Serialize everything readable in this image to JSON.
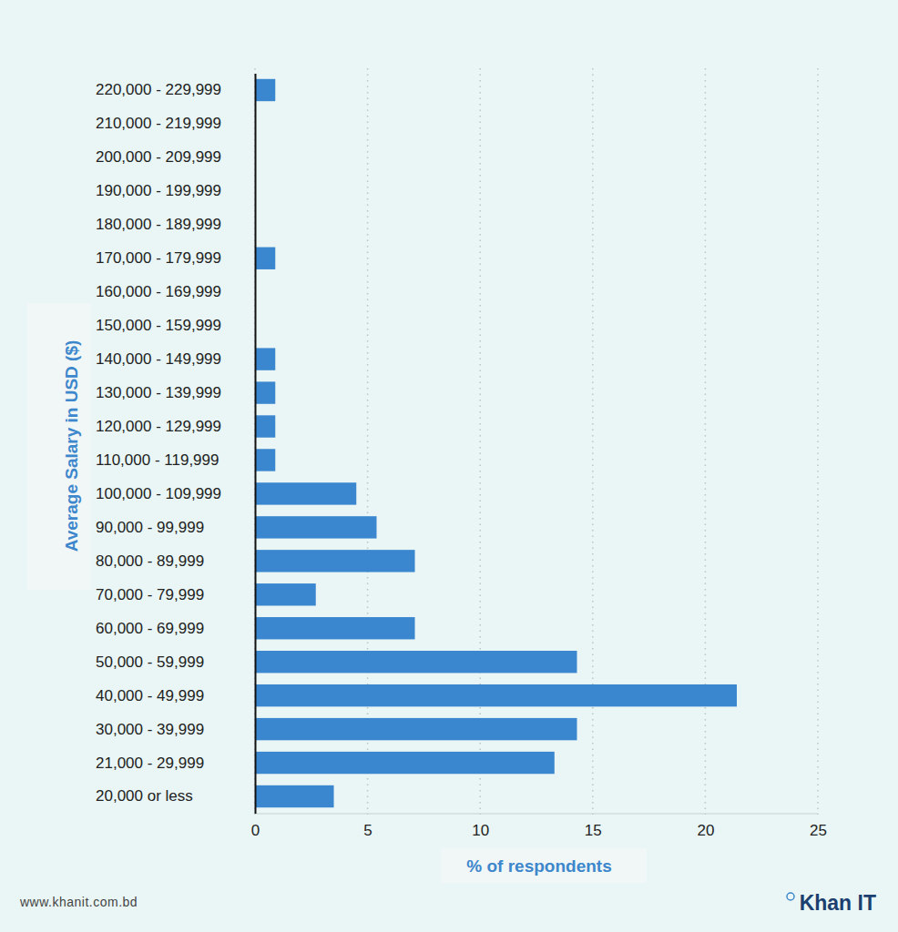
{
  "chart_data": {
    "type": "bar",
    "orientation": "horizontal",
    "x_label": "% of respondents",
    "y_label": "Average Salary in USD ($)",
    "categories": [
      "20,000 or less",
      "21,000 - 29,999",
      "30,000 - 39,999",
      "40,000 - 49,999",
      "50,000 - 59,999",
      "60,000 - 69,999",
      "70,000 - 79,999",
      "80,000 - 89,999",
      "90,000 - 99,999",
      "100,000 - 109,999",
      "110,000 - 119,999",
      "120,000 - 129,999",
      "130,000 - 139,999",
      "140,000 - 149,999",
      "150,000 - 159,999",
      "160,000 - 169,999",
      "170,000 - 179,999",
      "180,000 - 189,999",
      "190,000 - 199,999",
      "200,000 - 209,999",
      "210,000 - 219,999",
      "220,000 - 229,999"
    ],
    "values": [
      3.5,
      13.3,
      14.3,
      21.4,
      14.3,
      7.1,
      2.7,
      7.1,
      5.4,
      4.5,
      0.9,
      0.9,
      0.9,
      0.9,
      0,
      0,
      0.9,
      0,
      0,
      0,
      0,
      0.9
    ],
    "color": "#3a86cf",
    "xlim": [
      0,
      25
    ],
    "xticks": [
      0,
      5,
      10,
      15,
      20,
      25
    ],
    "grid": true
  },
  "footer": {
    "source": "www.khanit.com.bd",
    "logo": "Khan IT"
  }
}
